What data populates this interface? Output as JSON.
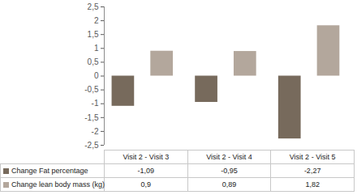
{
  "chart_data": {
    "type": "bar",
    "categories": [
      "Visit 2 - Visit 3",
      "Visit 2 - Visit 4",
      "Visit 2 - Visit 5"
    ],
    "series": [
      {
        "name": "Change Fat percentage",
        "color": "#776a5c",
        "values": [
          -1.09,
          -0.95,
          -2.27
        ],
        "value_labels": [
          "-1,09",
          "-0,95",
          "-2,27"
        ]
      },
      {
        "name": "Change lean body mass (kg)",
        "color": "#b3a79c",
        "values": [
          0.9,
          0.89,
          1.82
        ],
        "value_labels": [
          "0,9",
          "0,89",
          "1,82"
        ]
      }
    ],
    "ylim": [
      -2.5,
      2.5
    ],
    "yticks": [
      {
        "value": 2.5,
        "label": "2,5"
      },
      2,
      {
        "value": 1.5,
        "label": "1,5"
      },
      1,
      {
        "value": 0.5,
        "label": "0,5"
      },
      0,
      {
        "value": -0.5,
        "label": "-0,5"
      },
      -1,
      {
        "value": -1.5,
        "label": "-1,5"
      },
      -2,
      {
        "value": -2.5,
        "label": "-2,5"
      }
    ],
    "grid": false
  }
}
